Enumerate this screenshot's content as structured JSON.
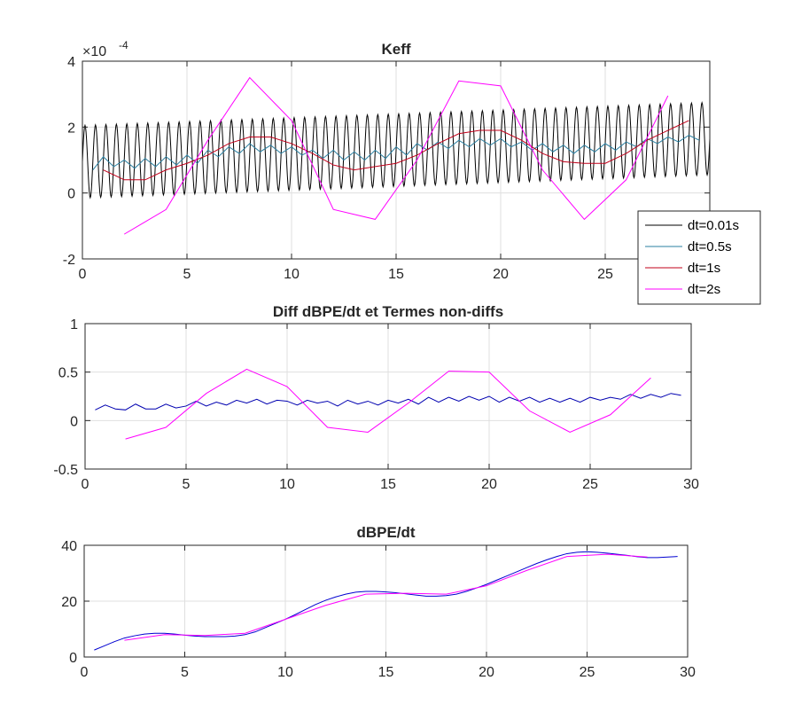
{
  "chart_data": [
    {
      "type": "line",
      "title": "Keff",
      "xlabel": "",
      "ylabel": "",
      "exponent_label": "×10",
      "exponent_value": "-4",
      "xlim": [
        0,
        30
      ],
      "ylim": [
        -2,
        4
      ],
      "xticks": [
        0,
        5,
        10,
        15,
        20,
        25
      ],
      "yticks": [
        -2,
        0,
        2,
        4
      ],
      "grid": true,
      "legend_position": "right",
      "series": [
        {
          "name": "dt=0.01s",
          "color": "#000000",
          "generator": "oscillation",
          "x_range": [
            0,
            30
          ],
          "period": 0.5,
          "mean_start": 0.95,
          "mean_end": 1.65,
          "amplitude": 1.1
        },
        {
          "name": "dt=0.5s",
          "color": "#2a7fa0",
          "x": [
            0.5,
            1,
            1.5,
            2,
            2.5,
            3,
            3.5,
            4,
            4.5,
            5,
            5.5,
            6,
            6.5,
            7,
            7.5,
            8,
            8.5,
            9,
            9.5,
            10,
            10.5,
            11,
            11.5,
            12,
            12.5,
            13,
            13.5,
            14,
            14.5,
            15,
            15.5,
            16,
            16.5,
            17,
            17.5,
            18,
            18.5,
            19,
            19.5,
            20,
            20.5,
            21,
            21.5,
            22,
            22.5,
            23,
            23.5,
            24,
            24.5,
            25,
            25.5,
            26,
            26.5,
            27,
            27.5,
            28,
            28.5,
            29,
            29.5
          ],
          "y": [
            0.7,
            1.1,
            0.8,
            1.0,
            0.75,
            1.05,
            0.8,
            1.1,
            0.85,
            1.15,
            0.9,
            1.3,
            1.1,
            1.4,
            1.2,
            1.5,
            1.25,
            1.45,
            1.2,
            1.4,
            1.15,
            1.3,
            1.05,
            1.3,
            1.0,
            1.25,
            1.0,
            1.3,
            1.05,
            1.4,
            1.15,
            1.5,
            1.3,
            1.55,
            1.35,
            1.6,
            1.4,
            1.65,
            1.45,
            1.65,
            1.4,
            1.55,
            1.3,
            1.5,
            1.25,
            1.45,
            1.2,
            1.45,
            1.25,
            1.5,
            1.3,
            1.55,
            1.4,
            1.65,
            1.5,
            1.7,
            1.55,
            1.75,
            1.6
          ]
        },
        {
          "name": "dt=1s",
          "color": "#c0001a",
          "x": [
            1,
            2,
            3,
            4,
            5,
            6,
            7,
            8,
            9,
            10,
            11,
            12,
            13,
            14,
            15,
            16,
            17,
            18,
            19,
            20,
            21,
            22,
            23,
            24,
            25,
            26,
            27,
            28,
            29
          ],
          "y": [
            0.7,
            0.4,
            0.4,
            0.7,
            0.9,
            1.15,
            1.5,
            1.7,
            1.7,
            1.5,
            1.2,
            0.85,
            0.7,
            0.8,
            0.9,
            1.15,
            1.5,
            1.8,
            1.9,
            1.9,
            1.6,
            1.2,
            0.95,
            0.9,
            0.9,
            1.2,
            1.6,
            1.9,
            2.2
          ]
        },
        {
          "name": "dt=2s",
          "color": "#ff00ff",
          "x": [
            2,
            4,
            6,
            8,
            10,
            12,
            14,
            16,
            18,
            20,
            22,
            24,
            26,
            28
          ],
          "y": [
            -1.25,
            -0.5,
            1.6,
            3.5,
            2.2,
            -0.5,
            -0.8,
            1.0,
            3.4,
            3.25,
            0.7,
            -0.8,
            0.4,
            2.95
          ]
        }
      ]
    },
    {
      "type": "line",
      "title": "Diff dBPE/dt et Termes non-diffs",
      "xlabel": "",
      "ylabel": "",
      "xlim": [
        0,
        30
      ],
      "ylim": [
        -0.5,
        1
      ],
      "xticks": [
        0,
        5,
        10,
        15,
        20,
        25,
        30
      ],
      "yticks": [
        -0.5,
        0,
        0.5,
        1
      ],
      "grid": true,
      "series": [
        {
          "color": "#0000b0",
          "x": [
            0.5,
            1,
            1.5,
            2,
            2.5,
            3,
            3.5,
            4,
            4.5,
            5,
            5.5,
            6,
            6.5,
            7,
            7.5,
            8,
            8.5,
            9,
            9.5,
            10,
            10.5,
            11,
            11.5,
            12,
            12.5,
            13,
            13.5,
            14,
            14.5,
            15,
            15.5,
            16,
            16.5,
            17,
            17.5,
            18,
            18.5,
            19,
            19.5,
            20,
            20.5,
            21,
            21.5,
            22,
            22.5,
            23,
            23.5,
            24,
            24.5,
            25,
            25.5,
            26,
            26.5,
            27,
            27.5,
            28,
            28.5,
            29,
            29.5
          ],
          "y": [
            0.11,
            0.16,
            0.12,
            0.11,
            0.17,
            0.12,
            0.12,
            0.17,
            0.13,
            0.15,
            0.2,
            0.15,
            0.19,
            0.16,
            0.21,
            0.18,
            0.22,
            0.17,
            0.21,
            0.2,
            0.16,
            0.21,
            0.18,
            0.2,
            0.15,
            0.21,
            0.17,
            0.2,
            0.16,
            0.21,
            0.18,
            0.22,
            0.17,
            0.24,
            0.19,
            0.24,
            0.2,
            0.25,
            0.21,
            0.25,
            0.19,
            0.24,
            0.2,
            0.24,
            0.19,
            0.23,
            0.19,
            0.23,
            0.19,
            0.24,
            0.21,
            0.24,
            0.22,
            0.27,
            0.23,
            0.27,
            0.24,
            0.28,
            0.26
          ]
        },
        {
          "color": "#ff00ff",
          "x": [
            2,
            4,
            6,
            8,
            10,
            12,
            14,
            16,
            18,
            20,
            22,
            24,
            26,
            28
          ],
          "y": [
            -0.19,
            -0.07,
            0.28,
            0.53,
            0.35,
            -0.07,
            -0.12,
            0.18,
            0.51,
            0.5,
            0.1,
            -0.12,
            0.06,
            0.44
          ]
        }
      ]
    },
    {
      "type": "line",
      "title": "dBPE/dt",
      "xlabel": "",
      "ylabel": "",
      "xlim": [
        0,
        30
      ],
      "ylim": [
        0,
        40
      ],
      "xticks": [
        0,
        5,
        10,
        15,
        20,
        25,
        30
      ],
      "yticks": [
        0,
        20,
        40
      ],
      "grid": true,
      "series": [
        {
          "color": "#0000d0",
          "x": [
            0.5,
            1,
            1.5,
            2,
            2.5,
            3,
            3.5,
            4,
            4.5,
            5,
            5.5,
            6,
            6.5,
            7,
            7.5,
            8,
            8.5,
            9,
            9.5,
            10,
            10.5,
            11,
            11.5,
            12,
            12.5,
            13,
            13.5,
            14,
            14.5,
            15,
            15.5,
            16,
            16.5,
            17,
            17.5,
            18,
            18.5,
            19,
            19.5,
            20,
            20.5,
            21,
            21.5,
            22,
            22.5,
            23,
            23.5,
            24,
            24.5,
            25,
            25.5,
            26,
            26.5,
            27,
            27.5,
            28,
            28.5,
            29,
            29.5
          ],
          "y": [
            2.5,
            4.0,
            5.5,
            6.8,
            7.6,
            8.2,
            8.5,
            8.5,
            8.2,
            7.8,
            7.5,
            7.3,
            7.3,
            7.3,
            7.5,
            8.0,
            9.0,
            10.5,
            12.0,
            13.5,
            15.2,
            17.0,
            18.8,
            20.3,
            21.5,
            22.5,
            23.2,
            23.5,
            23.5,
            23.3,
            23.0,
            22.6,
            22.2,
            21.8,
            21.8,
            22.0,
            22.5,
            23.5,
            24.7,
            26.0,
            27.5,
            29.0,
            30.5,
            32.0,
            33.5,
            34.8,
            36.0,
            37.0,
            37.5,
            37.7,
            37.5,
            37.2,
            36.8,
            36.4,
            35.9,
            35.6,
            35.6,
            35.8,
            36.0
          ]
        },
        {
          "color": "#ff00ff",
          "x": [
            2,
            4,
            6,
            8,
            10,
            12,
            14,
            16,
            18,
            20,
            22,
            24,
            26,
            28
          ],
          "y": [
            6.0,
            8.0,
            7.7,
            8.5,
            13.5,
            18.5,
            22.5,
            22.8,
            22.5,
            25.5,
            31.0,
            36.0,
            36.8,
            35.8
          ]
        }
      ]
    }
  ]
}
